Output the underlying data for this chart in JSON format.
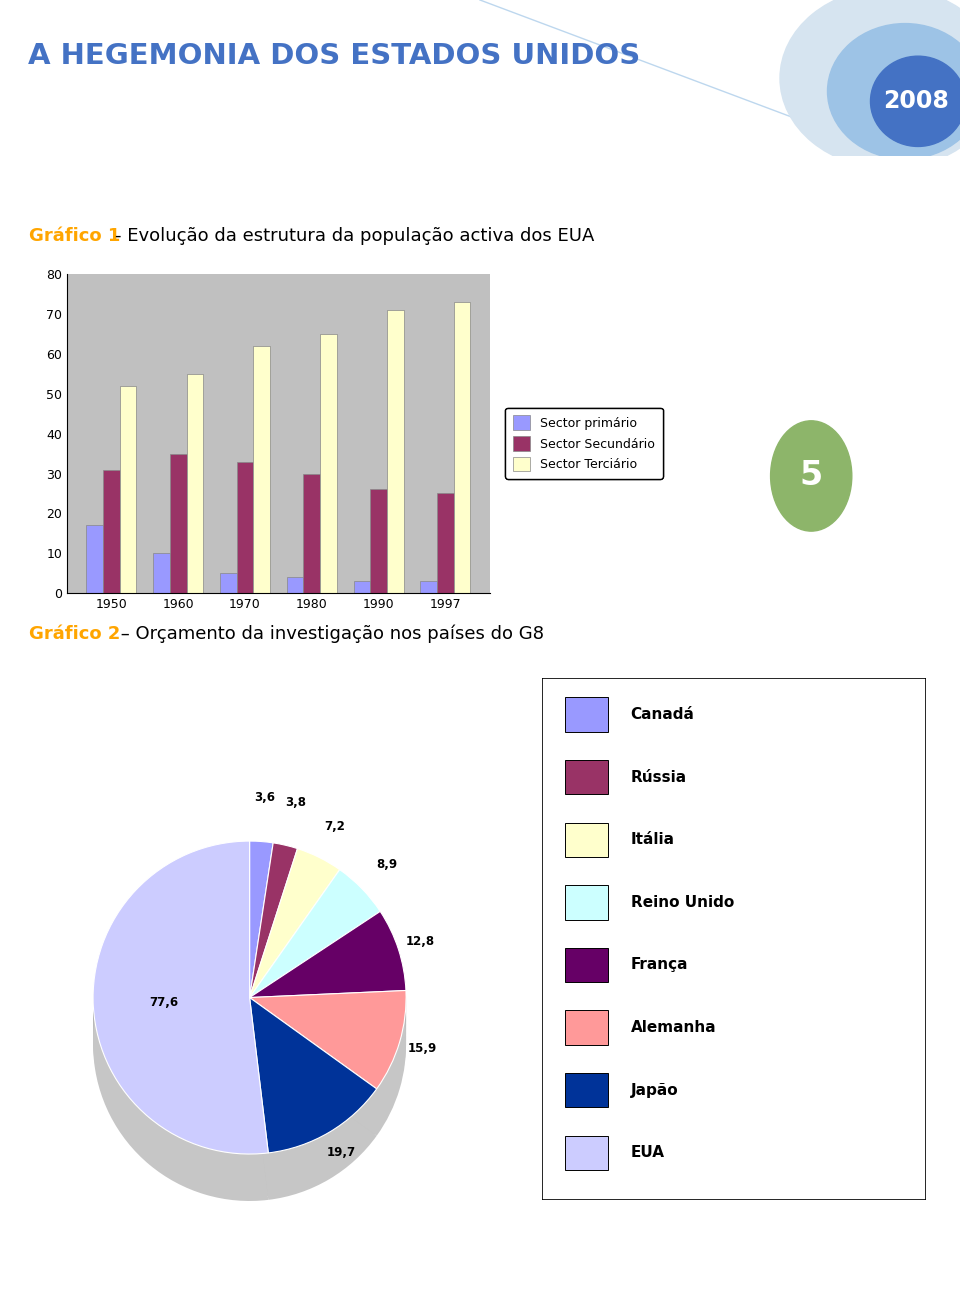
{
  "title_main": "A HEGEMONIA DOS ESTADOS UNIDOS",
  "title_year": "2008",
  "title_main_color": "#4472C4",
  "title_year_color": "#FFFFFF",
  "grafico1_label": "Gráfico 1",
  "grafico1_text": "- Evolução da estrutura da população activa dos EUA",
  "grafico1_label_color": "#FFA500",
  "grafico1_text_color": "#000000",
  "bar_years": [
    "1950",
    "1960",
    "1970",
    "1980",
    "1990",
    "1997"
  ],
  "bar_primario": [
    17,
    10,
    5,
    4,
    3,
    3
  ],
  "bar_secundario": [
    31,
    35,
    33,
    30,
    26,
    25
  ],
  "bar_terciario": [
    52,
    55,
    62,
    65,
    71,
    73
  ],
  "bar_color_primario": "#9999FF",
  "bar_color_secundario": "#993366",
  "bar_color_terciario": "#FFFFCC",
  "bar_ylim": [
    0,
    80
  ],
  "bar_yticks": [
    0,
    10,
    20,
    30,
    40,
    50,
    60,
    70,
    80
  ],
  "bar_legend": [
    "Sector primário",
    "Sector Secundário",
    "Sector Terciário"
  ],
  "bar_bg_color": "#C0C0C0",
  "number5_color": "#8DB56A",
  "grafico2_label": "Gráfico 2",
  "grafico2_text": " – Orçamento da investigação nos países do G8",
  "grafico2_label_color": "#FFA500",
  "grafico2_text_color": "#000000",
  "pie_labels": [
    "Canadá",
    "Rússia",
    "Itália",
    "Reino Unido",
    "França",
    "Alemanha",
    "Japão",
    "EUA"
  ],
  "pie_values": [
    3.6,
    3.8,
    7.2,
    8.9,
    12.8,
    15.9,
    19.7,
    77.6
  ],
  "pie_colors": [
    "#9999FF",
    "#993366",
    "#FFFFCC",
    "#CCFFFF",
    "#660066",
    "#FF9999",
    "#003399",
    "#CCCCFF"
  ],
  "pie_label_values": [
    "3,6",
    "3,8",
    "7,2",
    "8,9",
    "12,8",
    "15,9",
    "19,7",
    "77,6"
  ],
  "pie_startangle": 90,
  "page_bg": "#FFFFFF"
}
